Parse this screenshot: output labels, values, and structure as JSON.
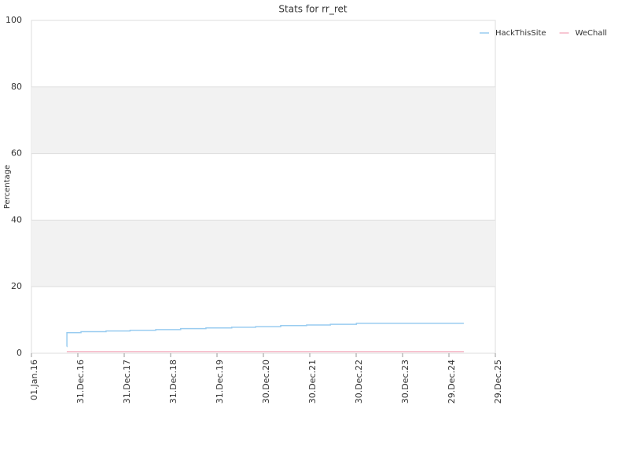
{
  "chart_data": {
    "type": "line",
    "title": "Stats for rr_ret",
    "y_label": "Percentage",
    "x": [
      "05.Oct.16",
      "06.Oct.16",
      "25.Jan.17",
      "10.Aug.17",
      "15.Feb.18",
      "05.Sep.18",
      "20.Mar.19",
      "05.Oct.19",
      "25.Apr.20",
      "30.Oct.20",
      "15.May.21",
      "05.Dec.21",
      "10.Jun.22",
      "01.Jan.23",
      "25.Apr.25"
    ],
    "series": [
      {
        "name": "HackThisSite",
        "color": "#99ccf0",
        "values": [
          2,
          6.2,
          6.5,
          6.7,
          6.9,
          7.1,
          7.4,
          7.6,
          7.8,
          8.0,
          8.3,
          8.5,
          8.7,
          9.0,
          9.0
        ]
      },
      {
        "name": "WeChall",
        "color": "#f4b4c4",
        "values": [
          0.5,
          0.5,
          0.5,
          0.5,
          0.5,
          0.5,
          0.5,
          0.5,
          0.5,
          0.5,
          0.5,
          0.5,
          0.5,
          0.5,
          0.5
        ]
      }
    ],
    "step": true,
    "xlim": [
      "01.Jan.16",
      "29.Dec.25"
    ],
    "xticks": [
      "01.Jan.16",
      "31.Dec.16",
      "31.Dec.17",
      "31.Dec.18",
      "31.Dec.19",
      "30.Dec.20",
      "30.Dec.21",
      "30.Dec.22",
      "30.Dec.23",
      "29.Dec.24",
      "29.Dec.25"
    ],
    "ylim": [
      0,
      100
    ],
    "yticks": [
      0,
      20,
      40,
      60,
      80,
      100
    ],
    "grid": true,
    "bands": true,
    "legend": "top-right"
  }
}
